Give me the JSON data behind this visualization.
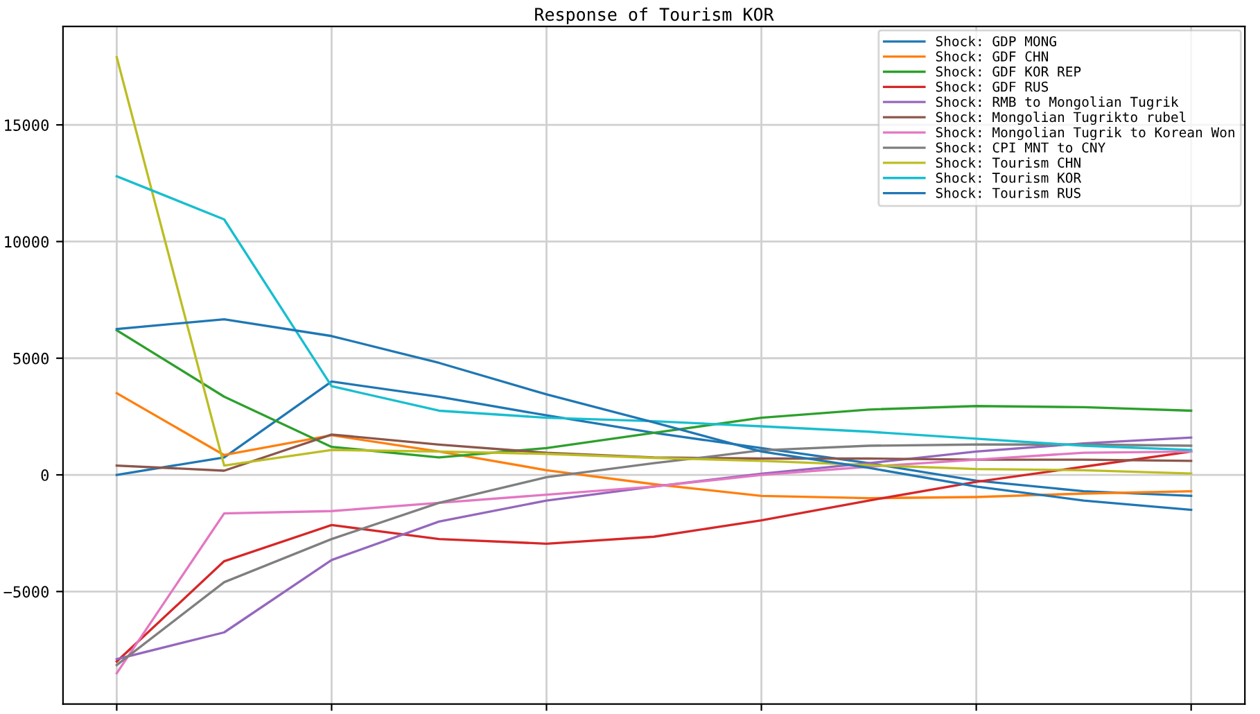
{
  "chart_data": {
    "type": "line",
    "title": "Response of Tourism KOR",
    "categories": [
      null,
      null,
      null,
      null,
      null,
      null,
      null,
      null,
      null,
      null,
      null
    ],
    "ylim": [
      -9820,
      19220
    ],
    "yticks": [
      {
        "value": -5000,
        "label": "−5000"
      },
      0,
      5000,
      10000,
      15000
    ],
    "tick_labels": "y",
    "grid": true,
    "legend": "top right",
    "series": [
      {
        "name": "Shock: GDP MONG",
        "color": "#1f77b4",
        "values": [
          0,
          750,
          4000,
          3350,
          2550,
          1800,
          1150,
          500,
          -250,
          -700,
          -900
        ]
      },
      {
        "name": "Shock: GDF CHN",
        "color": "#ff7f0e",
        "values": [
          3500,
          850,
          1700,
          1000,
          200,
          -400,
          -900,
          -1000,
          -950,
          -800,
          -700
        ]
      },
      {
        "name": "Shock: GDF KOR REP",
        "color": "#2ca02c",
        "values": [
          6200,
          3350,
          1200,
          750,
          1150,
          1800,
          2450,
          2800,
          2950,
          2900,
          2750
        ]
      },
      {
        "name": "Shock: GDF RUS",
        "color": "#d62728",
        "values": [
          -8000,
          -3700,
          -2150,
          -2750,
          -2950,
          -2650,
          -1950,
          -1100,
          -300,
          350,
          1000
        ]
      },
      {
        "name": "Shock: RMB to Mongolian Tugrik",
        "color": "#9467bd",
        "values": [
          -7900,
          -6750,
          -3650,
          -2000,
          -1100,
          -500,
          50,
          500,
          1000,
          1350,
          1600
        ]
      },
      {
        "name": "Shock: Mongolian Tugrikto rubel",
        "color": "#8c564b",
        "values": [
          400,
          180,
          1730,
          1300,
          950,
          750,
          700,
          700,
          650,
          650,
          600
        ]
      },
      {
        "name": "Shock: Mongolian Tugrik to Korean Won",
        "color": "#e377c2",
        "values": [
          -8500,
          -1650,
          -1550,
          -1200,
          -850,
          -500,
          0,
          350,
          650,
          950,
          1000
        ]
      },
      {
        "name": "Shock: CPI MNT to CNY",
        "color": "#7f7f7f",
        "values": [
          -8150,
          -4600,
          -2750,
          -1200,
          -100,
          500,
          1050,
          1250,
          1300,
          1300,
          1250
        ]
      },
      {
        "name": "Shock: Tourism CHN",
        "color": "#bcbd22",
        "values": [
          17900,
          400,
          1070,
          1000,
          900,
          730,
          600,
          420,
          250,
          200,
          60
        ]
      },
      {
        "name": "Shock: Tourism KOR",
        "color": "#17becf",
        "values": [
          12800,
          10950,
          3800,
          2750,
          2450,
          2300,
          2080,
          1850,
          1550,
          1250,
          1070
        ]
      },
      {
        "name": "Shock: Tourism RUS",
        "color": "#1f77b4",
        "values": [
          6250,
          6670,
          5950,
          4800,
          3450,
          2250,
          1000,
          300,
          -500,
          -1100,
          -1500
        ]
      }
    ]
  }
}
